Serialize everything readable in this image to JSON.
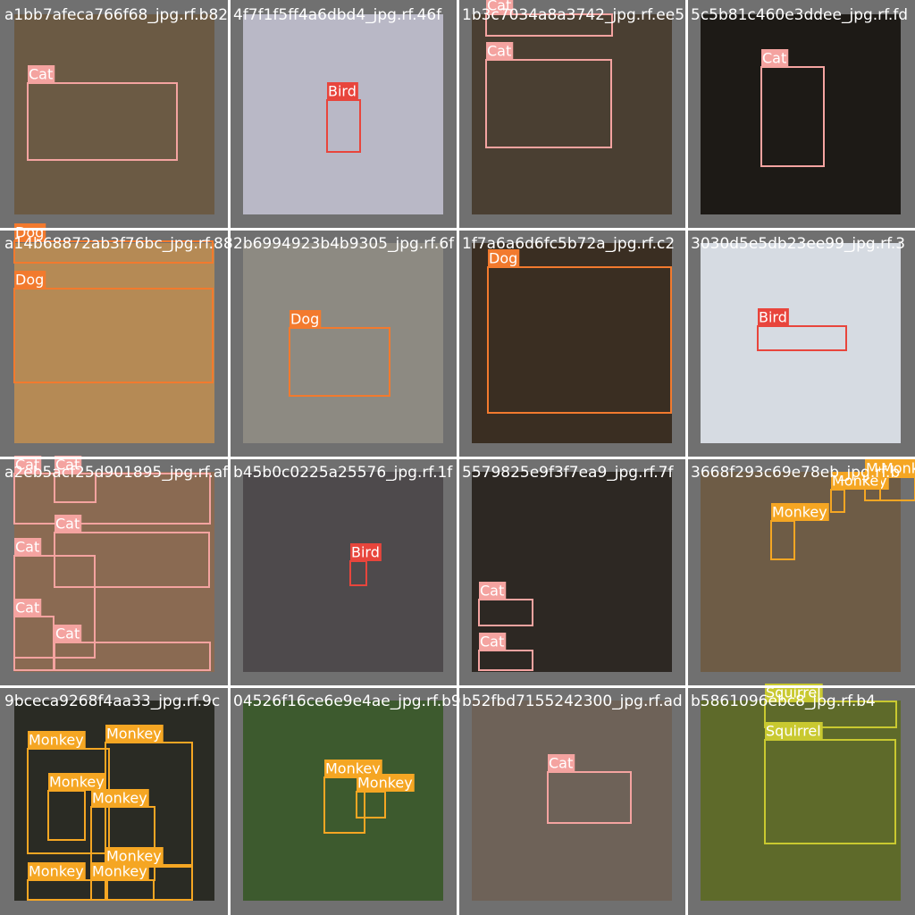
{
  "tiles": [
    {
      "filename": "a1bb7afeca766f68_jpg.rf.b82",
      "boxes": [
        {
          "label": "Cat",
          "color": "#f4a3a0"
        }
      ]
    },
    {
      "filename": "4f7f1f5ff4a6dbd4_jpg.rf.46f",
      "boxes": [
        {
          "label": "Bird",
          "color": "#e8453c"
        }
      ]
    },
    {
      "filename": "1b3c7034a8a3742_jpg.rf.ee5",
      "boxes": [
        {
          "label": "Cat",
          "color": "#f4a3a0"
        },
        {
          "label": "Cat",
          "color": "#f4a3a0"
        }
      ]
    },
    {
      "filename": "5c5b81c460e3ddee_jpg.rf.fd",
      "boxes": [
        {
          "label": "Cat",
          "color": "#f4a3a0"
        }
      ]
    },
    {
      "filename": "a14b68872ab3f76bc_jpg.rf.88",
      "boxes": [
        {
          "label": "Dog",
          "color": "#f27a2e"
        },
        {
          "label": "Dog",
          "color": "#f27a2e"
        }
      ]
    },
    {
      "filename": "2b6994923b4b9305_jpg.rf.6f",
      "boxes": [
        {
          "label": "Dog",
          "color": "#f27a2e"
        }
      ]
    },
    {
      "filename": "1f7a6a6d6fc5b72a_jpg.rf.c2",
      "boxes": [
        {
          "label": "Dog",
          "color": "#f27a2e"
        }
      ]
    },
    {
      "filename": "3030d5e5db23ee99_jpg.rf.3",
      "boxes": [
        {
          "label": "Bird",
          "color": "#e8453c"
        }
      ]
    },
    {
      "filename": "a2eb5acf25d901895_jpg.rf.af",
      "boxes": [
        {
          "label": "Cat",
          "color": "#f4a3a0"
        },
        {
          "label": "Cat",
          "color": "#f4a3a0"
        },
        {
          "label": "Cat",
          "color": "#f4a3a0"
        },
        {
          "label": "Cat",
          "color": "#f4a3a0"
        },
        {
          "label": "Cat",
          "color": "#f4a3a0"
        },
        {
          "label": "Cat",
          "color": "#f4a3a0"
        }
      ]
    },
    {
      "filename": "b45b0c0225a25576_jpg.rf.1f",
      "boxes": [
        {
          "label": "Bird",
          "color": "#e8453c"
        }
      ]
    },
    {
      "filename": "5579825e9f3f7ea9_jpg.rf.7f",
      "boxes": [
        {
          "label": "Cat",
          "color": "#f4a3a0"
        },
        {
          "label": "Cat",
          "color": "#f4a3a0"
        }
      ]
    },
    {
      "filename": "3668f293c69e78eb_jpg.rf.b",
      "boxes": [
        {
          "label": "Monkey",
          "color": "#f5a623"
        },
        {
          "label": "Monkey",
          "color": "#f5a623"
        },
        {
          "label": "Monkey",
          "color": "#f5a623"
        },
        {
          "label": "Monkey",
          "color": "#f5a623"
        }
      ]
    },
    {
      "filename": "9bceca9268f4aa33_jpg.rf.9c",
      "boxes": [
        {
          "label": "Monkey",
          "color": "#f5a623"
        },
        {
          "label": "Monkey",
          "color": "#f5a623"
        },
        {
          "label": "Monkey",
          "color": "#f5a623"
        },
        {
          "label": "Monkey",
          "color": "#f5a623"
        },
        {
          "label": "Monkey",
          "color": "#f5a623"
        },
        {
          "label": "Monkey",
          "color": "#f5a623"
        },
        {
          "label": "Monkey",
          "color": "#f5a623"
        }
      ]
    },
    {
      "filename": "04526f16ce6e9e4ae_jpg.rf.b9",
      "boxes": [
        {
          "label": "Monkey",
          "color": "#f5a623"
        },
        {
          "label": "Monkey",
          "color": "#f5a623"
        }
      ]
    },
    {
      "filename": "b52fbd7155242300_jpg.rf.ad",
      "boxes": [
        {
          "label": "Cat",
          "color": "#f4a3a0"
        }
      ]
    },
    {
      "filename": "b5861096ebc8_jpg.rf.b4",
      "boxes": [
        {
          "label": "Squirrel",
          "color": "#c9c930"
        },
        {
          "label": "Squirrel",
          "color": "#c9c930"
        }
      ]
    }
  ]
}
